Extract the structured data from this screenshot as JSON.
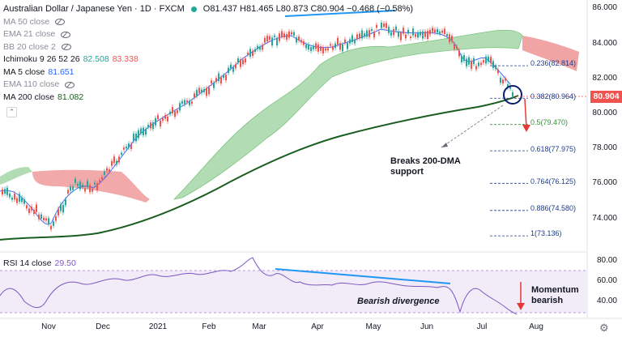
{
  "header": {
    "symbol": "Australian Dollar / Japanese Yen · 1D · FXCM",
    "ohlc": "O81.437 H81.465 L80.873 C80.904 −0.468 (−0.58%)"
  },
  "indicators": [
    {
      "label": "MA 50 close",
      "value": "",
      "hidden": true
    },
    {
      "label": "EMA 21 close",
      "value": "",
      "hidden": true
    },
    {
      "label": "BB 20 close 2",
      "value": "",
      "hidden": true
    },
    {
      "label": "Ichimoku 9 26 52 26",
      "value": "82.508",
      "value2": "83.338",
      "hidden": false
    },
    {
      "label": "MA 5 close",
      "value": "81.651",
      "hidden": false
    },
    {
      "label": "EMA 110 close",
      "value": "",
      "hidden": true
    },
    {
      "label": "MA 200 close",
      "value": "81.082",
      "hidden": false
    }
  ],
  "rsi": {
    "label": "RSI 14 close",
    "value": "29.50"
  },
  "price_axis": [
    "86.000",
    "84.000",
    "82.000",
    "80.000",
    "78.000",
    "76.000",
    "74.000"
  ],
  "rsi_axis": [
    "80.00",
    "60.00",
    "40.00"
  ],
  "last_price": "80.904",
  "time_axis": [
    "Nov",
    "Dec",
    "2021",
    "Feb",
    "Mar",
    "Apr",
    "May",
    "Jun",
    "Jul",
    "Aug"
  ],
  "fib_levels": [
    {
      "label": "0.236(82.814)",
      "value": 82.814,
      "color": "#1e3a8a"
    },
    {
      "label": "0.382(80.964)",
      "value": 80.964,
      "color": "#1e3a8a"
    },
    {
      "label": "0.5(79.470)",
      "value": 79.47,
      "color": "#388e3c"
    },
    {
      "label": "0.618(77.975)",
      "value": 77.975,
      "color": "#1e3a8a"
    },
    {
      "label": "0.764(76.125)",
      "value": 76.125,
      "color": "#1e3a8a"
    },
    {
      "label": "0.886(74.580)",
      "value": 74.58,
      "color": "#1e3a8a"
    },
    {
      "label": "1(73.136)",
      "value": 73.136,
      "color": "#1e3a8a"
    }
  ],
  "annotations": {
    "breaks": "Breaks 200-DMA support",
    "bearish_div": "Bearish divergence",
    "momentum": "Momentum bearish"
  },
  "colors": {
    "bull": "#26a69a",
    "bear": "#ef5350",
    "kumo_bull": "#a5d6a7",
    "kumo_bear": "#ef9a9a",
    "ma200": "#1b5e20",
    "ma5": "#2962ff",
    "rsi": "#7e57c2",
    "trendline": "#2196f3"
  }
}
